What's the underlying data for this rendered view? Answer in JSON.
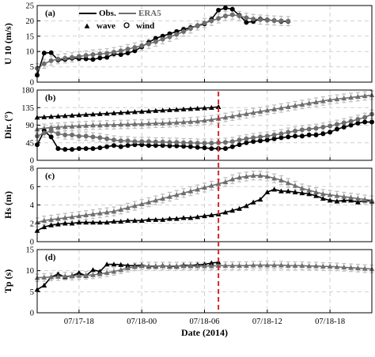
{
  "colors": {
    "obs": "#000000",
    "era5": "#6e6e6e",
    "errorbar": "#bdbdbd",
    "grid": "#d0d0d0",
    "marker_line": "#d62728"
  },
  "legend": {
    "obs": "Obs.",
    "era5": "ERA5",
    "wave": "wave",
    "wind": "wind"
  },
  "chart_data": [
    {
      "type": "line",
      "panel_label": "(a)",
      "ylabel": "U 10 (m/s)",
      "ylim": [
        0,
        25
      ],
      "yticks": [
        0,
        5,
        10,
        15,
        20,
        25
      ],
      "series": [
        {
          "name": "Obs.",
          "marker": "circle",
          "x": [
            0,
            1,
            2,
            3,
            4,
            5,
            6,
            7,
            8,
            9,
            10,
            11,
            12,
            13,
            14,
            15,
            16,
            17,
            18,
            19,
            20,
            21,
            22,
            23,
            24,
            25,
            26,
            27,
            28,
            29,
            30,
            31,
            32,
            33,
            34,
            35,
            36
          ],
          "values": [
            2.3,
            9.5,
            9.6,
            7.2,
            7.4,
            7.8,
            7.7,
            7.6,
            7.4,
            7.9,
            8.1,
            9.2,
            9.0,
            9.5,
            10.2,
            11.5,
            13.0,
            14.3,
            15.0,
            15.8,
            16.5,
            17.2,
            17.8,
            18.4,
            19.0,
            20.5,
            23.5,
            24.2,
            23.8,
            21.8,
            19.5,
            19.8,
            20.6,
            20.3,
            20.1,
            19.8,
            19.8
          ]
        },
        {
          "name": "ERA5",
          "marker": "circle",
          "x": [
            0,
            1,
            2,
            3,
            4,
            5,
            6,
            7,
            8,
            9,
            10,
            11,
            12,
            13,
            14,
            15,
            16,
            17,
            18,
            19,
            20,
            21,
            22,
            23,
            24,
            25,
            26,
            27,
            28,
            29,
            30,
            31,
            32,
            33,
            34,
            35,
            36
          ],
          "values": [
            4.5,
            6.0,
            7.0,
            7.5,
            7.8,
            8.1,
            8.4,
            8.7,
            9.0,
            9.2,
            9.4,
            9.8,
            10.2,
            10.8,
            11.3,
            11.9,
            12.5,
            13.2,
            14.0,
            14.8,
            15.6,
            16.5,
            17.5,
            18.5,
            19.3,
            20.0,
            20.8,
            21.6,
            22.0,
            21.6,
            21.0,
            20.6,
            20.4,
            20.2,
            20.1,
            20.0,
            19.9
          ]
        }
      ]
    },
    {
      "type": "line",
      "panel_label": "(b)",
      "ylabel": "Dir. (°)",
      "ylim": [
        0,
        180
      ],
      "yticks": [
        0,
        45,
        90,
        135,
        180
      ],
      "series": [
        {
          "name": "Obs. wave",
          "marker": "triangle",
          "x": [
            0,
            1,
            2,
            3,
            4,
            5,
            6,
            7,
            8,
            9,
            10,
            11,
            12,
            13,
            14,
            15,
            16,
            17,
            18,
            19,
            20,
            21,
            22,
            23,
            24,
            25,
            26
          ],
          "values": [
            110,
            111,
            112,
            113,
            114,
            115,
            116,
            117,
            118,
            119,
            120,
            121,
            122,
            123,
            124,
            125,
            126,
            127,
            128,
            129,
            130,
            131,
            132,
            133,
            134,
            135,
            137
          ]
        },
        {
          "name": "ERA5 wave",
          "marker": "triangle",
          "x": [
            0,
            1,
            2,
            3,
            4,
            5,
            6,
            7,
            8,
            9,
            10,
            11,
            12,
            13,
            14,
            15,
            16,
            17,
            18,
            19,
            20,
            21,
            22,
            23,
            24,
            25,
            26,
            27,
            28,
            29,
            30,
            31,
            32,
            33,
            34,
            35,
            36,
            37,
            38,
            39,
            40,
            41,
            42,
            43,
            44,
            45,
            46,
            47,
            48
          ],
          "values": [
            80,
            82,
            84,
            85,
            86,
            87,
            88,
            89,
            90,
            90,
            91,
            91,
            92,
            92,
            93,
            93,
            94,
            95,
            95,
            96,
            97,
            98,
            99,
            100,
            102,
            104,
            107,
            110,
            113,
            116,
            119,
            122,
            125,
            128,
            131,
            134,
            137,
            140,
            143,
            146,
            149,
            152,
            155,
            157,
            159,
            161,
            163,
            165,
            167
          ]
        },
        {
          "name": "Obs. wind",
          "marker": "circle",
          "x": [
            0,
            1,
            2,
            3,
            4,
            5,
            6,
            7,
            8,
            9,
            10,
            11,
            12,
            13,
            14,
            15,
            16,
            17,
            18,
            19,
            20,
            21,
            22,
            23,
            24,
            25,
            26,
            27,
            28,
            29,
            30,
            31,
            32,
            33,
            34,
            35,
            36,
            37,
            38,
            39,
            40,
            41,
            42,
            43,
            44,
            45,
            46,
            47,
            48
          ],
          "values": [
            40,
            75,
            60,
            30,
            28,
            28,
            30,
            30,
            30,
            32,
            35,
            38,
            35,
            38,
            40,
            40,
            38,
            38,
            38,
            37,
            37,
            36,
            35,
            33,
            32,
            30,
            30,
            30,
            35,
            40,
            45,
            48,
            50,
            52,
            55,
            58,
            60,
            62,
            62,
            65,
            65,
            68,
            72,
            80,
            85,
            90,
            95,
            98,
            98
          ]
        },
        {
          "name": "ERA5 wind",
          "marker": "circle",
          "x": [
            0,
            1,
            2,
            3,
            4,
            5,
            6,
            7,
            8,
            9,
            10,
            11,
            12,
            13,
            14,
            15,
            16,
            17,
            18,
            19,
            20,
            21,
            22,
            23,
            24,
            25,
            26,
            27,
            28,
            29,
            30,
            31,
            32,
            33,
            34,
            35,
            36,
            37,
            38,
            39,
            40,
            41,
            42,
            43,
            44,
            45,
            46,
            47,
            48
          ],
          "values": [
            62,
            70,
            75,
            68,
            65,
            65,
            62,
            62,
            60,
            58,
            55,
            52,
            50,
            50,
            48,
            48,
            48,
            47,
            47,
            46,
            46,
            45,
            45,
            44,
            44,
            44,
            45,
            46,
            48,
            52,
            55,
            58,
            60,
            62,
            65,
            68,
            72,
            75,
            78,
            80,
            82,
            85,
            88,
            92,
            96,
            100,
            105,
            110,
            118
          ]
        }
      ]
    },
    {
      "type": "line",
      "panel_label": "(c)",
      "ylabel": "Hs (m)",
      "ylim": [
        0,
        8
      ],
      "yticks": [
        0,
        2,
        4,
        6,
        8
      ],
      "series": [
        {
          "name": "Obs.",
          "marker": "triangle",
          "x": [
            0,
            1,
            2,
            3,
            4,
            5,
            6,
            7,
            8,
            9,
            10,
            11,
            12,
            13,
            14,
            15,
            16,
            17,
            18,
            19,
            20,
            21,
            22,
            23,
            24,
            25,
            26,
            27,
            28,
            29,
            30,
            31,
            32,
            33,
            34,
            35,
            36,
            37,
            38,
            39,
            40,
            41,
            42,
            43,
            44,
            45,
            46,
            47,
            48
          ],
          "values": [
            1.2,
            1.6,
            1.8,
            1.9,
            2.0,
            2.0,
            2.1,
            2.1,
            2.1,
            2.1,
            2.1,
            2.2,
            2.2,
            2.3,
            2.3,
            2.3,
            2.4,
            2.4,
            2.4,
            2.5,
            2.5,
            2.6,
            2.6,
            2.7,
            2.8,
            2.9,
            3.0,
            3.2,
            3.4,
            3.6,
            3.9,
            4.3,
            4.6,
            5.4,
            5.7,
            5.5,
            5.5,
            5.4,
            5.3,
            5.2,
            5.0,
            4.7,
            4.5,
            4.4,
            4.5,
            4.5,
            4.3,
            4.5,
            4.4
          ]
        },
        {
          "name": "ERA5",
          "marker": "triangle",
          "x": [
            0,
            1,
            2,
            3,
            4,
            5,
            6,
            7,
            8,
            9,
            10,
            11,
            12,
            13,
            14,
            15,
            16,
            17,
            18,
            19,
            20,
            21,
            22,
            23,
            24,
            25,
            26,
            27,
            28,
            29,
            30,
            31,
            32,
            33,
            34,
            35,
            36,
            37,
            38,
            39,
            40,
            41,
            42,
            43,
            44,
            45,
            46,
            47,
            48
          ],
          "values": [
            2.1,
            2.3,
            2.4,
            2.5,
            2.6,
            2.7,
            2.8,
            2.9,
            3.0,
            3.1,
            3.2,
            3.3,
            3.5,
            3.7,
            3.9,
            4.1,
            4.3,
            4.5,
            4.7,
            4.9,
            5.1,
            5.3,
            5.5,
            5.7,
            5.9,
            6.1,
            6.3,
            6.5,
            6.8,
            7.0,
            7.1,
            7.2,
            7.2,
            7.1,
            6.9,
            6.7,
            6.4,
            6.1,
            5.8,
            5.6,
            5.4,
            5.2,
            5.1,
            5.0,
            4.9,
            4.8,
            4.7,
            4.6,
            4.5
          ]
        }
      ]
    },
    {
      "type": "line",
      "panel_label": "(d)",
      "ylabel": "Tp (s)",
      "xlabel": "Date (2014)",
      "ylim": [
        0,
        15
      ],
      "yticks": [
        0,
        5,
        10,
        15
      ],
      "xtick_labels": [
        "07/17-18",
        "07/18-00",
        "07/18-06",
        "07/18-12",
        "07/18-18"
      ],
      "xticks": [
        6,
        15,
        24,
        33,
        42
      ],
      "series": [
        {
          "name": "Obs.",
          "marker": "triangle",
          "x": [
            0,
            1,
            2,
            3,
            4,
            5,
            6,
            7,
            8,
            9,
            10,
            11,
            12,
            13,
            14,
            15,
            16,
            17,
            18,
            19,
            20,
            21,
            22,
            23,
            24,
            25,
            26
          ],
          "values": [
            5.5,
            6.5,
            8.5,
            9.2,
            8.5,
            8.8,
            9.5,
            8.8,
            10.2,
            9.8,
            11.5,
            11.5,
            11.4,
            11.2,
            11.2,
            11.3,
            11.0,
            11.0,
            11.2,
            11.0,
            11.0,
            11.3,
            11.2,
            11.4,
            11.5,
            11.8,
            12.0
          ]
        },
        {
          "name": "ERA5",
          "marker": "triangle",
          "x": [
            0,
            1,
            2,
            3,
            4,
            5,
            6,
            7,
            8,
            9,
            10,
            11,
            12,
            13,
            14,
            15,
            16,
            17,
            18,
            19,
            20,
            21,
            22,
            23,
            24,
            25,
            26,
            27,
            28,
            29,
            30,
            31,
            32,
            33,
            34,
            35,
            36,
            37,
            38,
            39,
            40,
            41,
            42,
            43,
            44,
            45,
            46,
            47,
            48
          ],
          "values": [
            8.3,
            8.4,
            8.5,
            8.6,
            8.7,
            8.7,
            8.8,
            8.9,
            9.0,
            9.2,
            9.5,
            9.8,
            10.2,
            10.6,
            10.9,
            11.1,
            11.1,
            11.1,
            11.1,
            11.1,
            11.1,
            11.1,
            11.1,
            11.1,
            11.1,
            11.1,
            11.2,
            11.2,
            11.2,
            11.2,
            11.2,
            11.3,
            11.3,
            11.3,
            11.3,
            11.3,
            11.2,
            11.2,
            11.2,
            11.1,
            11.1,
            11.0,
            11.0,
            10.9,
            10.8,
            10.7,
            10.6,
            10.5,
            10.4
          ]
        }
      ]
    }
  ],
  "event_marker_x": 26
}
